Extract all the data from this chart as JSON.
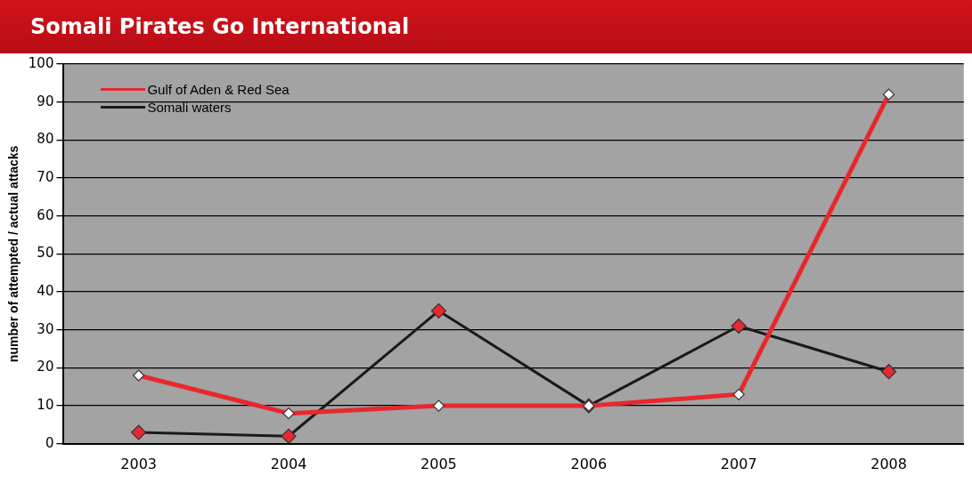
{
  "chart_data": {
    "type": "line",
    "title": "Somali Pirates Go International",
    "ylabel": "number of attempted / actual attacks",
    "categories": [
      "2003",
      "2004",
      "2005",
      "2006",
      "2007",
      "2008"
    ],
    "series": [
      {
        "name": "Gulf of Aden & Red Sea",
        "color": "#e8282e",
        "values": [
          18,
          8,
          10,
          10,
          13,
          92
        ]
      },
      {
        "name": "Somali waters",
        "color": "#1a1a1a",
        "values": [
          3,
          2,
          35,
          10,
          31,
          19
        ]
      }
    ],
    "ylim": [
      0,
      100
    ],
    "yticks": [
      0,
      10,
      20,
      30,
      40,
      50,
      60,
      70,
      80,
      90,
      100
    ],
    "grid": "y",
    "legend": "top left",
    "marker": "diamond",
    "line_style": "solid"
  }
}
